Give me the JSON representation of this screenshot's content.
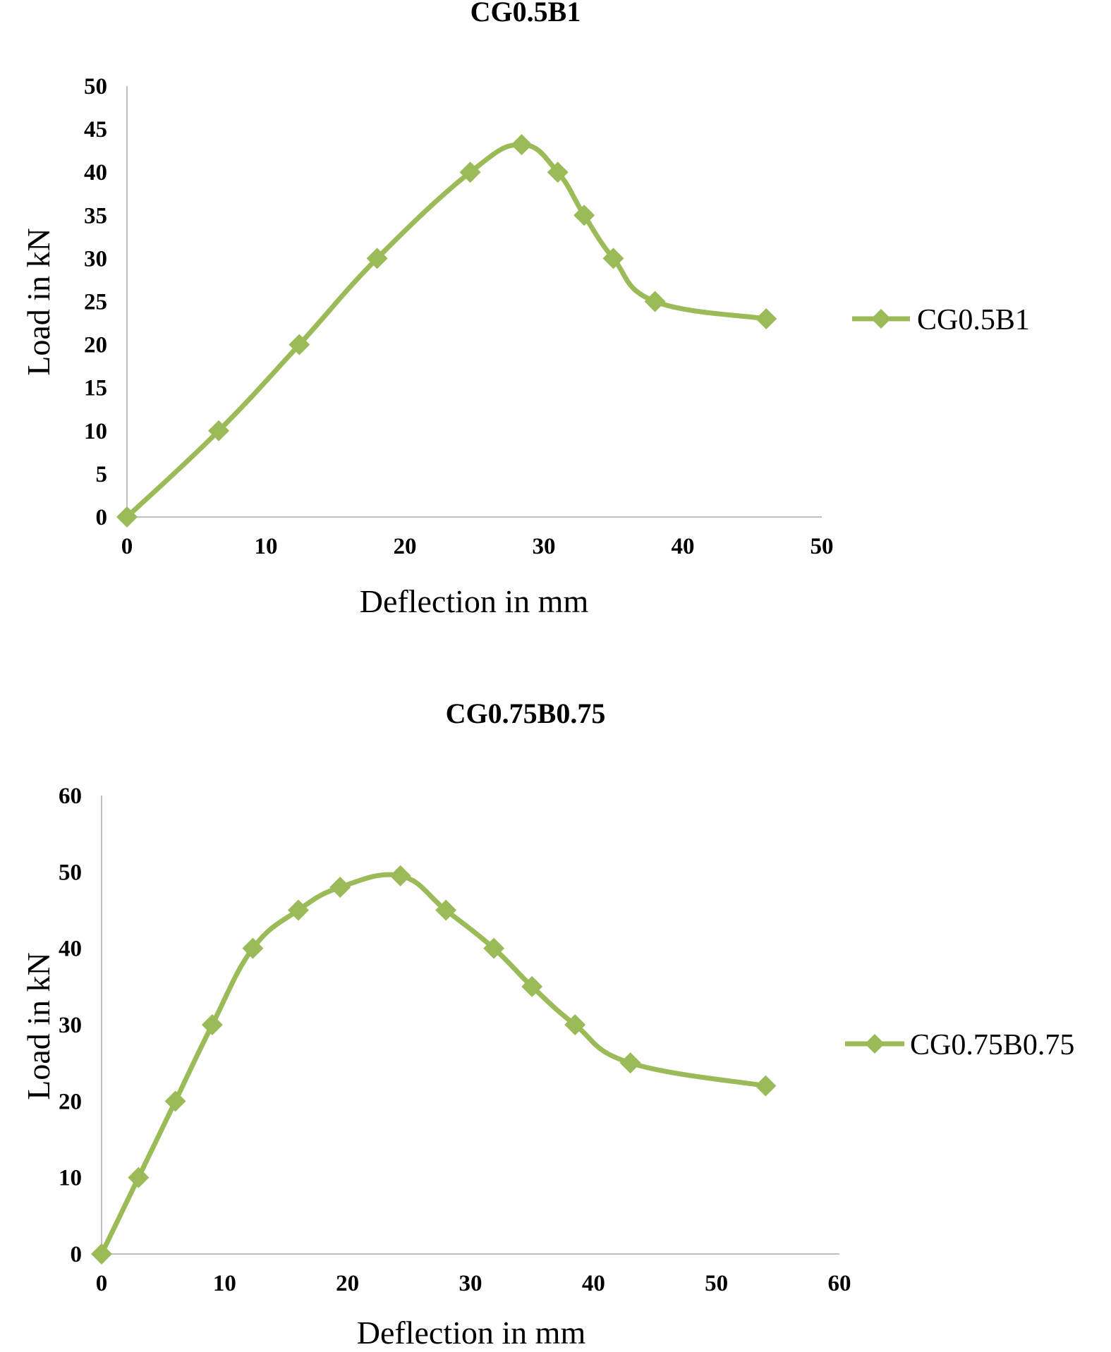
{
  "chart_data": [
    {
      "type": "line",
      "title": "CG0.5B1",
      "xlabel": "Deflection in mm",
      "ylabel": "Load in kN",
      "xlim": [
        0,
        50
      ],
      "ylim": [
        0,
        50
      ],
      "x_ticks": [
        "0",
        "10",
        "20",
        "30",
        "40",
        "50"
      ],
      "y_ticks": [
        "0",
        "5",
        "10",
        "15",
        "20",
        "25",
        "30",
        "35",
        "40",
        "45",
        "50"
      ],
      "legend_position": "right",
      "grid": false,
      "series": [
        {
          "name": "CG0.5B1",
          "color": "#9bbb59",
          "marker": "diamond",
          "smooth": true,
          "x": [
            0,
            6.6,
            12.4,
            18,
            24.7,
            28.4,
            31,
            32.9,
            35,
            38,
            46
          ],
          "y": [
            0,
            10,
            20,
            30,
            40,
            43.2,
            40,
            35,
            30,
            25,
            23
          ]
        }
      ]
    },
    {
      "type": "line",
      "title": "CG0.75B0.75",
      "xlabel": "Deflection in mm",
      "ylabel": "Load in kN",
      "xlim": [
        0,
        60
      ],
      "ylim": [
        0,
        60
      ],
      "x_ticks": [
        "0",
        "10",
        "20",
        "30",
        "40",
        "50",
        "60"
      ],
      "y_ticks": [
        "0",
        "10",
        "20",
        "30",
        "40",
        "50",
        "60"
      ],
      "legend_position": "right",
      "grid": false,
      "series": [
        {
          "name": "CG0.75B0.75",
          "color": "#9bbb59",
          "marker": "diamond",
          "smooth": true,
          "x": [
            0,
            3,
            6,
            9,
            12.3,
            16,
            19.4,
            24.3,
            28,
            31.9,
            35,
            38.5,
            43,
            54
          ],
          "y": [
            0,
            10,
            20,
            30,
            40,
            45,
            48,
            49.5,
            45,
            40,
            35,
            30,
            25,
            22
          ]
        }
      ]
    }
  ]
}
